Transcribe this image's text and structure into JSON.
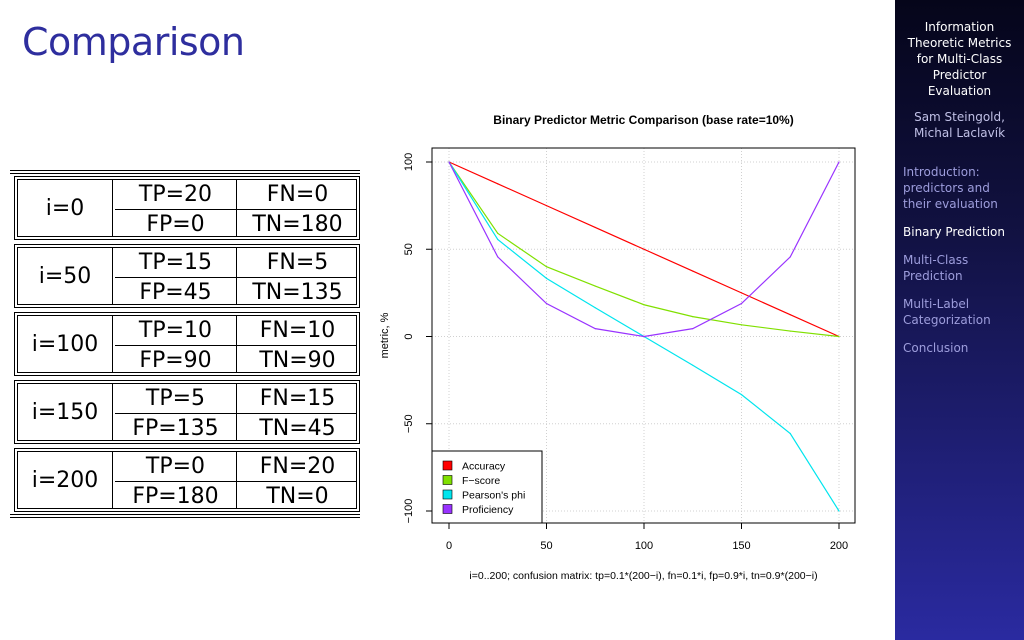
{
  "slide": {
    "title": "Comparison"
  },
  "sidebar": {
    "title": "Information Theoretic Metrics for Multi-Class Predictor Evaluation",
    "authors": "Sam Steingold, Michal Laclavík",
    "nav": [
      {
        "label": "Introduction: predictors and their evaluation",
        "active": false
      },
      {
        "label": "Binary Prediction",
        "active": true
      },
      {
        "label": "Multi-Class Prediction",
        "active": false
      },
      {
        "label": "Multi-Label Categorization",
        "active": false
      },
      {
        "label": "Conclusion",
        "active": false
      }
    ]
  },
  "table": {
    "rows": [
      {
        "label": "i=0",
        "tp": "TP=20",
        "fn": "FN=0",
        "fp": "FP=0",
        "tn": "TN=180"
      },
      {
        "label": "i=50",
        "tp": "TP=15",
        "fn": "FN=5",
        "fp": "FP=45",
        "tn": "TN=135"
      },
      {
        "label": "i=100",
        "tp": "TP=10",
        "fn": "FN=10",
        "fp": "FP=90",
        "tn": "TN=90"
      },
      {
        "label": "i=150",
        "tp": "TP=5",
        "fn": "FN=15",
        "fp": "FP=135",
        "tn": "TN=45"
      },
      {
        "label": "i=200",
        "tp": "TP=0",
        "fn": "FN=20",
        "fp": "FP=180",
        "tn": "TN=0"
      }
    ]
  },
  "chart_data": {
    "type": "line",
    "title": "Binary Predictor Metric Comparison (base rate=10%)",
    "xlabel": "i=0..200; confusion matrix: tp=0.1*(200−i), fn=0.1*i, fp=0.9*i, tn=0.9*(200−i)",
    "ylabel": "metric, %",
    "xlim": [
      0,
      200
    ],
    "ylim": [
      -100,
      100
    ],
    "xticks": [
      "0",
      "50",
      "100",
      "150",
      "200"
    ],
    "yticks": [
      "−100",
      "−50",
      "0",
      "50",
      "100"
    ],
    "grid": true,
    "legend": "bottom-left",
    "x": [
      0,
      25,
      50,
      75,
      100,
      125,
      150,
      175,
      200
    ],
    "series": [
      {
        "name": "Accuracy",
        "color": "#ff0000",
        "values": [
          100,
          87.5,
          75,
          62.5,
          50,
          37.5,
          25,
          12.5,
          0
        ]
      },
      {
        "name": "F−score",
        "color": "#80e000",
        "values": [
          100,
          59.1,
          40,
          28.9,
          18.2,
          11.4,
          6.7,
          3.1,
          0
        ]
      },
      {
        "name": "Pearson's phi",
        "color": "#00e5ee",
        "values": [
          100,
          55.6,
          33.3,
          16.5,
          0,
          -16.5,
          -33.3,
          -55.6,
          -100
        ]
      },
      {
        "name": "Proficiency",
        "color": "#9933ff",
        "values": [
          100,
          45.6,
          18.9,
          4.5,
          0,
          4.5,
          18.9,
          45.6,
          100
        ]
      }
    ]
  }
}
